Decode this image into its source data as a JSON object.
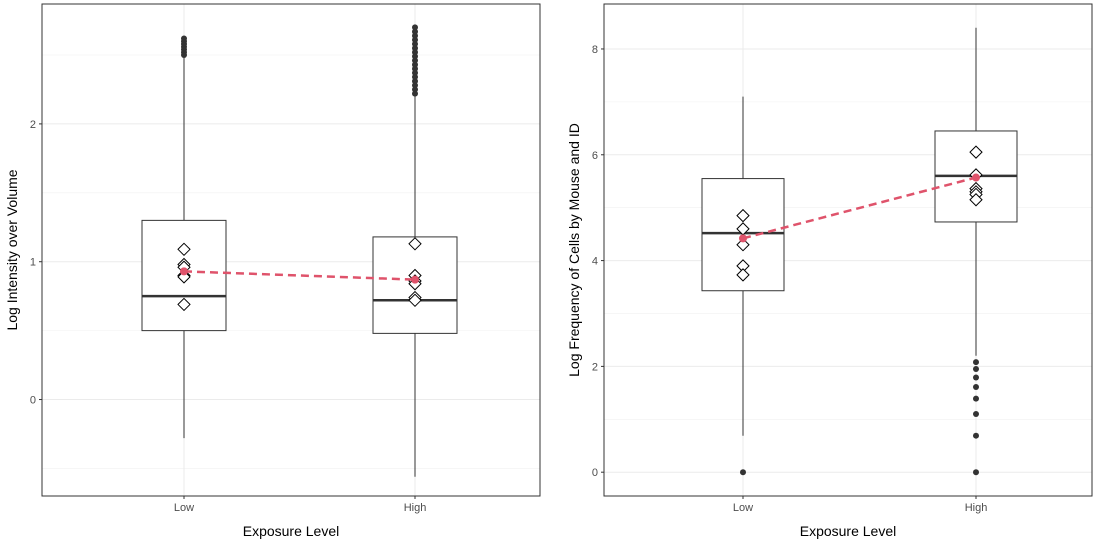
{
  "chart_data": [
    {
      "type": "box",
      "title": "",
      "xlabel": "Exposure Level",
      "ylabel": "Log Intensity over Volume",
      "categories": [
        "Low",
        "High"
      ],
      "ylim": [
        -0.7,
        2.87
      ],
      "y_ticks": [
        0,
        1,
        2
      ],
      "grid": true,
      "boxes": [
        {
          "category": "Low",
          "whisker_low": -0.28,
          "q1": 0.5,
          "median": 0.75,
          "q3": 1.3,
          "whisker_high": 2.49,
          "outliers": [
            2.5,
            2.52,
            2.54,
            2.56,
            2.58,
            2.6,
            2.62
          ]
        },
        {
          "category": "High",
          "whisker_low": -0.56,
          "q1": 0.48,
          "median": 0.72,
          "q3": 1.18,
          "whisker_high": 2.2,
          "outliers": [
            2.22,
            2.25,
            2.28,
            2.31,
            2.34,
            2.37,
            2.4,
            2.43,
            2.46,
            2.49,
            2.52,
            2.55,
            2.58,
            2.61,
            2.64,
            2.67,
            2.7
          ]
        }
      ],
      "points": [
        {
          "category": "Low",
          "values": [
            1.09,
            0.98,
            0.96,
            0.9,
            0.89,
            0.69
          ]
        },
        {
          "category": "High",
          "values": [
            1.13,
            0.9,
            0.86,
            0.84,
            0.74,
            0.72
          ]
        }
      ],
      "means": {
        "values": [
          0.93,
          0.87
        ],
        "color": "#DF536B"
      }
    },
    {
      "type": "box",
      "title": "",
      "xlabel": "Exposure Level",
      "ylabel": "Log Frequency of Cells by Mouse and ID",
      "categories": [
        "Low",
        "High"
      ],
      "ylim": [
        -0.45,
        8.85
      ],
      "y_ticks": [
        0,
        2,
        4,
        6,
        8
      ],
      "grid": true,
      "boxes": [
        {
          "category": "Low",
          "whisker_low": 0.69,
          "q1": 3.43,
          "median": 4.52,
          "q3": 5.55,
          "whisker_high": 7.1,
          "outliers": [
            0
          ]
        },
        {
          "category": "High",
          "whisker_low": 2.2,
          "q1": 4.73,
          "median": 5.6,
          "q3": 6.45,
          "whisker_high": 8.4,
          "outliers": [
            2.08,
            1.95,
            1.79,
            1.61,
            1.39,
            1.1,
            0.69,
            0
          ]
        }
      ],
      "points": [
        {
          "category": "Low",
          "values": [
            4.85,
            4.6,
            4.3,
            3.9,
            3.73
          ]
        },
        {
          "category": "High",
          "values": [
            6.05,
            5.62,
            5.36,
            5.3,
            5.25,
            5.15
          ]
        }
      ],
      "means": {
        "values": [
          4.42,
          5.57
        ],
        "color": "#DF536B"
      }
    }
  ]
}
